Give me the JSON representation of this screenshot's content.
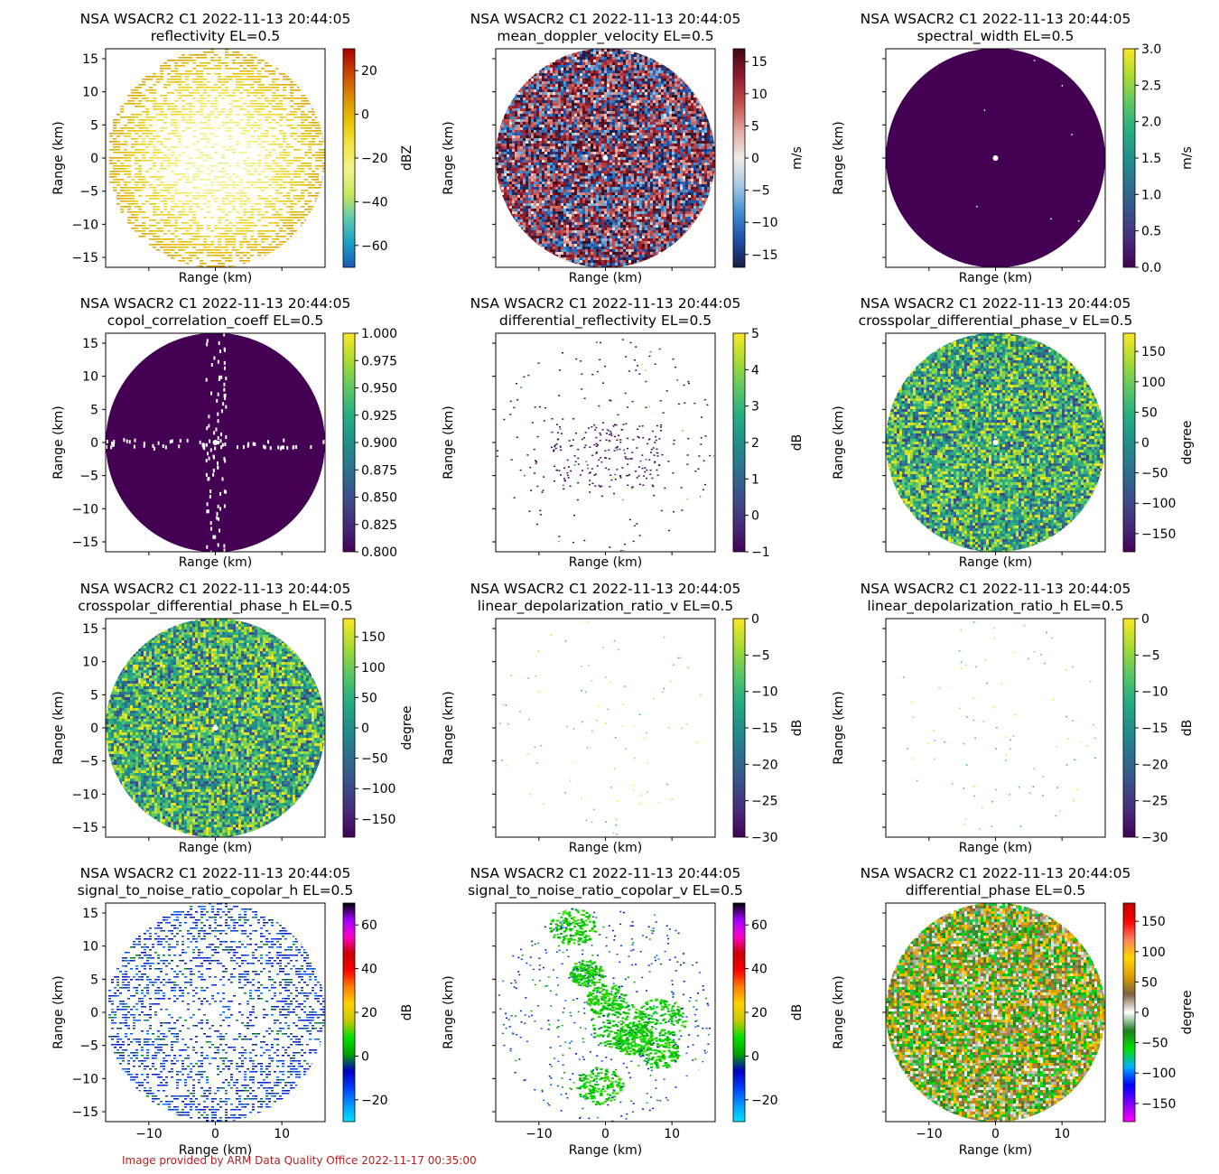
{
  "credit": "Image provided by ARM Data Quality Office 2022-11-17 00:35:00",
  "chart_data": [
    {
      "type": "heatmap",
      "title": "NSA WSACR2 C1 2022-11-13 20:44:05",
      "subtitle": "reflectivity  EL=0.5",
      "xlabel": "Range (km)",
      "ylabel": "Range (km)",
      "xlim": [
        -16.5,
        16.5
      ],
      "ylim": [
        -16.5,
        16.5
      ],
      "x_ticks": [
        -10,
        0,
        10
      ],
      "y_ticks": [
        15,
        10,
        5,
        0,
        -5,
        -10,
        -15
      ],
      "show_x_ticklabels": false,
      "show_y_ticklabels": true,
      "colorbar_label": "dBZ",
      "colorbar_range": [
        -70,
        30
      ],
      "colorbar_ticks": [
        20,
        0,
        -20,
        -40,
        -60
      ],
      "colormap": "HomeyerRainbow",
      "fill_pattern": "sparse rings, yellow edge, pale center",
      "density": 0.55
    },
    {
      "type": "heatmap",
      "title": "NSA WSACR2 C1 2022-11-13 20:44:05",
      "subtitle": "mean_doppler_velocity  EL=0.5",
      "xlabel": "Range (km)",
      "ylabel": "Range (km)",
      "xlim": [
        -16.5,
        16.5
      ],
      "ylim": [
        -16.5,
        16.5
      ],
      "x_ticks": [
        -10,
        0,
        10
      ],
      "y_ticks": [
        15,
        10,
        5,
        0,
        -5,
        -10,
        -15
      ],
      "show_x_ticklabels": false,
      "show_y_ticklabels": false,
      "colorbar_label": "m/s",
      "colorbar_range": [
        -17,
        17
      ],
      "colorbar_ticks": [
        15,
        10,
        5,
        0,
        -5,
        -10,
        -15
      ],
      "colormap": "balance",
      "fill_pattern": "dense noise",
      "density": 1.0
    },
    {
      "type": "heatmap",
      "title": "NSA WSACR2 C1 2022-11-13 20:44:05",
      "subtitle": "spectral_width  EL=0.5",
      "xlabel": "Range (km)",
      "ylabel": "Range (km)",
      "xlim": [
        -16.5,
        16.5
      ],
      "ylim": [
        -16.5,
        16.5
      ],
      "x_ticks": [
        -10,
        0,
        10
      ],
      "y_ticks": [
        15,
        10,
        5,
        0,
        -5,
        -10,
        -15
      ],
      "show_x_ticklabels": false,
      "show_y_ticklabels": false,
      "colorbar_label": "m/s",
      "colorbar_range": [
        0,
        3
      ],
      "colorbar_ticks": [
        3.0,
        2.5,
        2.0,
        1.5,
        1.0,
        0.5,
        0.0
      ],
      "colormap": "viridis",
      "fill_pattern": "uniform minimum",
      "density": 1.0
    },
    {
      "type": "heatmap",
      "title": "NSA WSACR2 C1 2022-11-13 20:44:05",
      "subtitle": "copol_correlation_coeff  EL=0.5",
      "xlabel": "Range (km)",
      "ylabel": "Range (km)",
      "xlim": [
        -16.5,
        16.5
      ],
      "ylim": [
        -16.5,
        16.5
      ],
      "x_ticks": [
        -10,
        0,
        10
      ],
      "y_ticks": [
        15,
        10,
        5,
        0,
        -5,
        -10,
        -15
      ],
      "show_x_ticklabels": false,
      "show_y_ticklabels": true,
      "colorbar_label": "",
      "colorbar_range": [
        0.8,
        1.0
      ],
      "colorbar_ticks": [
        1.0,
        0.975,
        0.95,
        0.925,
        0.9,
        0.875,
        0.85,
        0.825,
        0.8
      ],
      "colormap": "viridis",
      "fill_pattern": "uniform minimum with cross gaps",
      "density": 1.0
    },
    {
      "type": "heatmap",
      "title": "NSA WSACR2 C1 2022-11-13 20:44:05",
      "subtitle": "differential_reflectivity  EL=0.5",
      "xlabel": "Range (km)",
      "ylabel": "Range (km)",
      "xlim": [
        -16.5,
        16.5
      ],
      "ylim": [
        -16.5,
        16.5
      ],
      "x_ticks": [
        -10,
        0,
        10
      ],
      "y_ticks": [
        15,
        10,
        5,
        0,
        -5,
        -10,
        -15
      ],
      "show_x_ticklabels": false,
      "show_y_ticklabels": false,
      "colorbar_label": "dB",
      "colorbar_range": [
        -1,
        5
      ],
      "colorbar_ticks": [
        5,
        4,
        3,
        2,
        1,
        0,
        -1
      ],
      "colormap": "viridis",
      "fill_pattern": "very sparse purple",
      "density": 0.04
    },
    {
      "type": "heatmap",
      "title": "NSA WSACR2 C1 2022-11-13 20:44:05",
      "subtitle": "crosspolar_differential_phase_v  EL=0.5",
      "xlabel": "Range (km)",
      "ylabel": "Range (km)",
      "xlim": [
        -16.5,
        16.5
      ],
      "ylim": [
        -16.5,
        16.5
      ],
      "x_ticks": [
        -10,
        0,
        10
      ],
      "y_ticks": [
        15,
        10,
        5,
        0,
        -5,
        -10,
        -15
      ],
      "show_x_ticklabels": false,
      "show_y_ticklabels": false,
      "colorbar_label": "degree",
      "colorbar_range": [
        -180,
        180
      ],
      "colorbar_ticks": [
        150,
        100,
        50,
        0,
        -50,
        -100,
        -150
      ],
      "colormap": "viridis",
      "fill_pattern": "dense noise",
      "density": 1.0
    },
    {
      "type": "heatmap",
      "title": "NSA WSACR2 C1 2022-11-13 20:44:05",
      "subtitle": "crosspolar_differential_phase_h  EL=0.5",
      "xlabel": "Range (km)",
      "ylabel": "Range (km)",
      "xlim": [
        -16.5,
        16.5
      ],
      "ylim": [
        -16.5,
        16.5
      ],
      "x_ticks": [
        -10,
        0,
        10
      ],
      "y_ticks": [
        15,
        10,
        5,
        0,
        -5,
        -10,
        -15
      ],
      "show_x_ticklabels": false,
      "show_y_ticklabels": true,
      "colorbar_label": "degree",
      "colorbar_range": [
        -180,
        180
      ],
      "colorbar_ticks": [
        150,
        100,
        50,
        0,
        -50,
        -100,
        -150
      ],
      "colormap": "viridis",
      "fill_pattern": "dense noise",
      "density": 1.0
    },
    {
      "type": "heatmap",
      "title": "NSA WSACR2 C1 2022-11-13 20:44:05",
      "subtitle": "linear_depolarization_ratio_v  EL=0.5",
      "xlabel": "Range (km)",
      "ylabel": "Range (km)",
      "xlim": [
        -16.5,
        16.5
      ],
      "ylim": [
        -16.5,
        16.5
      ],
      "x_ticks": [
        -10,
        0,
        10
      ],
      "y_ticks": [
        15,
        10,
        5,
        0,
        -5,
        -10,
        -15
      ],
      "show_x_ticklabels": false,
      "show_y_ticklabels": false,
      "colorbar_label": "dB",
      "colorbar_range": [
        -30,
        0
      ],
      "colorbar_ticks": [
        0,
        -5,
        -10,
        -15,
        -20,
        -25,
        -30
      ],
      "colormap": "viridis",
      "fill_pattern": "scattered specks",
      "density": 0.01
    },
    {
      "type": "heatmap",
      "title": "NSA WSACR2 C1 2022-11-13 20:44:05",
      "subtitle": "linear_depolarization_ratio_h  EL=0.5",
      "xlabel": "Range (km)",
      "ylabel": "Range (km)",
      "xlim": [
        -16.5,
        16.5
      ],
      "ylim": [
        -16.5,
        16.5
      ],
      "x_ticks": [
        -10,
        0,
        10
      ],
      "y_ticks": [
        15,
        10,
        5,
        0,
        -5,
        -10,
        -15
      ],
      "show_x_ticklabels": false,
      "show_y_ticklabels": false,
      "colorbar_label": "dB",
      "colorbar_range": [
        -30,
        0
      ],
      "colorbar_ticks": [
        0,
        -5,
        -10,
        -15,
        -20,
        -25,
        -30
      ],
      "colormap": "viridis",
      "fill_pattern": "scattered specks",
      "density": 0.01
    },
    {
      "type": "heatmap",
      "title": "NSA WSACR2 C1 2022-11-13 20:44:05",
      "subtitle": "signal_to_noise_ratio_copolar_h  EL=0.5",
      "xlabel": "Range (km)",
      "ylabel": "Range (km)",
      "xlim": [
        -16.5,
        16.5
      ],
      "ylim": [
        -16.5,
        16.5
      ],
      "x_ticks": [
        -10,
        0,
        10
      ],
      "y_ticks": [
        15,
        10,
        5,
        0,
        -5,
        -10,
        -15
      ],
      "show_x_ticklabels": true,
      "show_y_ticklabels": true,
      "colorbar_label": "dB",
      "colorbar_range": [
        -30,
        70
      ],
      "colorbar_ticks": [
        60,
        40,
        20,
        0,
        -20
      ],
      "colormap": "pyart_Carbone42",
      "fill_pattern": "sparse blue",
      "density": 0.45
    },
    {
      "type": "heatmap",
      "title": "NSA WSACR2 C1 2022-11-13 20:44:05",
      "subtitle": "signal_to_noise_ratio_copolar_v  EL=0.5",
      "xlabel": "Range (km)",
      "ylabel": "Range (km)",
      "xlim": [
        -16.5,
        16.5
      ],
      "ylim": [
        -16.5,
        16.5
      ],
      "x_ticks": [
        -10,
        0,
        10
      ],
      "y_ticks": [
        15,
        10,
        5,
        0,
        -5,
        -10,
        -15
      ],
      "show_x_ticklabels": true,
      "show_y_ticklabels": false,
      "colorbar_label": "dB",
      "colorbar_range": [
        -30,
        70
      ],
      "colorbar_ticks": [
        60,
        40,
        20,
        0,
        -20
      ],
      "colormap": "pyart_Carbone42",
      "fill_pattern": "green clusters",
      "density": 0.12
    },
    {
      "type": "heatmap",
      "title": "NSA WSACR2 C1 2022-11-13 20:44:05",
      "subtitle": "differential_phase  EL=0.5",
      "xlabel": "Range (km)",
      "ylabel": "Range (km)",
      "xlim": [
        -16.5,
        16.5
      ],
      "ylim": [
        -16.5,
        16.5
      ],
      "x_ticks": [
        -10,
        0,
        10
      ],
      "y_ticks": [
        15,
        10,
        5,
        0,
        -5,
        -10,
        -15
      ],
      "show_x_ticklabels": true,
      "show_y_ticklabels": false,
      "colorbar_label": "degree",
      "colorbar_range": [
        -180,
        180
      ],
      "colorbar_ticks": [
        150,
        100,
        50,
        0,
        -50,
        -100,
        -150
      ],
      "colormap": "pyart_Wild25",
      "fill_pattern": "dense noise",
      "density": 1.0
    }
  ],
  "colormaps": {
    "HomeyerRainbow": [
      "#1a5bb5",
      "#19a0c4",
      "#5ec8b0",
      "#c6e85c",
      "#f2f28c",
      "#f5e64a",
      "#e8c400",
      "#d98e00",
      "#c94400",
      "#a80000"
    ],
    "balance": [
      "#181c43",
      "#1f4fa8",
      "#3f8fcf",
      "#a7c9e4",
      "#f1ece8",
      "#e3a8a0",
      "#c2504d",
      "#8f1a2f",
      "#3c0911"
    ],
    "viridis": [
      "#440154",
      "#472c7a",
      "#3b518b",
      "#2c718e",
      "#21908d",
      "#27ad81",
      "#5cc863",
      "#aadc32",
      "#fde725"
    ],
    "pyart_Carbone42": [
      "#00e5ff",
      "#0096ff",
      "#0040ff",
      "#0000c0",
      "#00a000",
      "#00e000",
      "#c8c800",
      "#ffd200",
      "#ff8000",
      "#ff0000",
      "#c80000",
      "#ff00c8",
      "#a000ff",
      "#000000"
    ],
    "pyart_Wild25": [
      "#ff00ff",
      "#8000ff",
      "#0000ff",
      "#00b0ff",
      "#00e000",
      "#208020",
      "#ffffff",
      "#806040",
      "#e0a000",
      "#ffd700",
      "#ff8060",
      "#ff0000",
      "#c00000"
    ]
  }
}
